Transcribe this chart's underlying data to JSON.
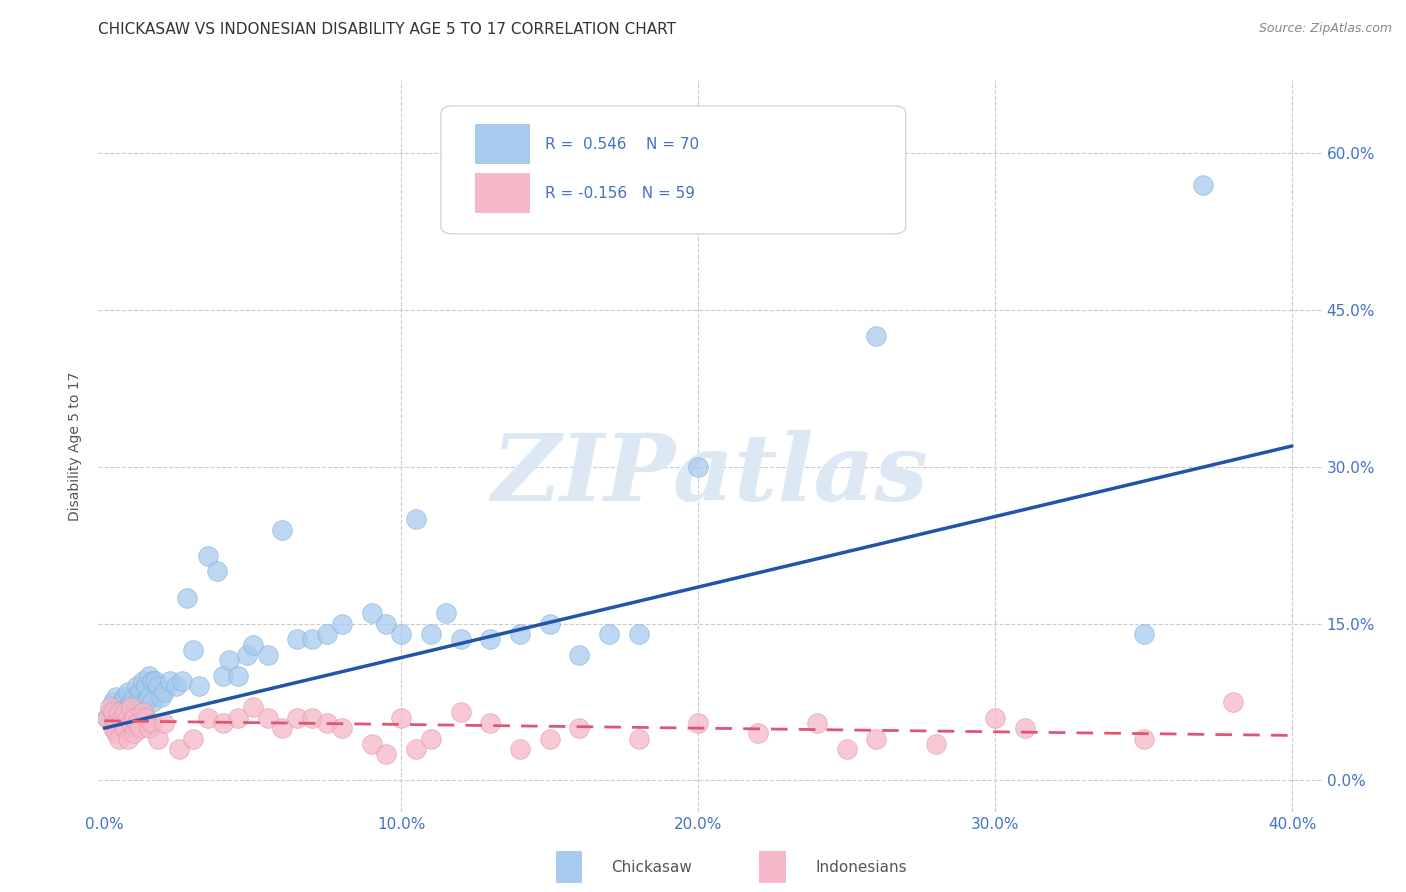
{
  "title": "CHICKASAW VS INDONESIAN DISABILITY AGE 5 TO 17 CORRELATION CHART",
  "source": "Source: ZipAtlas.com",
  "ylabel": "Disability Age 5 to 17",
  "ytick_values": [
    0.0,
    0.15,
    0.3,
    0.45,
    0.6
  ],
  "xtick_values": [
    0.0,
    0.1,
    0.2,
    0.3,
    0.4
  ],
  "xlim": [
    -0.002,
    0.41
  ],
  "ylim": [
    -0.03,
    0.67
  ],
  "chickasaw_R": 0.546,
  "chickasaw_N": 70,
  "indonesian_R": -0.156,
  "indonesian_N": 59,
  "chickasaw_color": "#a8caee",
  "chickasaw_edge_color": "#7aafd4",
  "chickasaw_line_color": "#2255aa",
  "indonesian_color": "#f5b8c8",
  "indonesian_edge_color": "#e090a8",
  "indonesian_line_color": "#e05575",
  "watermark_color": "#dce9f5",
  "background_color": "#ffffff",
  "grid_color": "#cccccc",
  "tick_label_color": "#4472c4",
  "ylabel_color": "#555555",
  "title_color": "#333333",
  "source_color": "#888888",
  "chickasaw_x": [
    0.001,
    0.002,
    0.003,
    0.003,
    0.004,
    0.004,
    0.005,
    0.005,
    0.006,
    0.006,
    0.007,
    0.007,
    0.008,
    0.008,
    0.009,
    0.009,
    0.01,
    0.01,
    0.011,
    0.011,
    0.012,
    0.012,
    0.013,
    0.013,
    0.014,
    0.014,
    0.015,
    0.015,
    0.016,
    0.016,
    0.017,
    0.018,
    0.019,
    0.02,
    0.022,
    0.024,
    0.026,
    0.028,
    0.03,
    0.032,
    0.035,
    0.038,
    0.04,
    0.042,
    0.045,
    0.048,
    0.05,
    0.055,
    0.06,
    0.065,
    0.07,
    0.075,
    0.08,
    0.09,
    0.095,
    0.1,
    0.105,
    0.11,
    0.115,
    0.12,
    0.13,
    0.14,
    0.15,
    0.16,
    0.17,
    0.18,
    0.2,
    0.26,
    0.35,
    0.37
  ],
  "chickasaw_y": [
    0.06,
    0.065,
    0.055,
    0.075,
    0.06,
    0.08,
    0.055,
    0.07,
    0.06,
    0.075,
    0.065,
    0.08,
    0.07,
    0.085,
    0.065,
    0.075,
    0.07,
    0.08,
    0.075,
    0.09,
    0.07,
    0.085,
    0.075,
    0.095,
    0.075,
    0.09,
    0.08,
    0.1,
    0.075,
    0.095,
    0.095,
    0.09,
    0.08,
    0.085,
    0.095,
    0.09,
    0.095,
    0.175,
    0.125,
    0.09,
    0.215,
    0.2,
    0.1,
    0.115,
    0.1,
    0.12,
    0.13,
    0.12,
    0.24,
    0.135,
    0.135,
    0.14,
    0.15,
    0.16,
    0.15,
    0.14,
    0.25,
    0.14,
    0.16,
    0.135,
    0.135,
    0.14,
    0.15,
    0.12,
    0.14,
    0.14,
    0.3,
    0.425,
    0.14,
    0.57
  ],
  "indonesian_x": [
    0.001,
    0.002,
    0.003,
    0.003,
    0.004,
    0.004,
    0.005,
    0.005,
    0.006,
    0.006,
    0.007,
    0.007,
    0.008,
    0.008,
    0.009,
    0.009,
    0.01,
    0.01,
    0.011,
    0.012,
    0.013,
    0.014,
    0.015,
    0.016,
    0.018,
    0.02,
    0.025,
    0.03,
    0.035,
    0.04,
    0.045,
    0.05,
    0.055,
    0.06,
    0.065,
    0.07,
    0.075,
    0.08,
    0.09,
    0.095,
    0.1,
    0.105,
    0.11,
    0.12,
    0.13,
    0.14,
    0.15,
    0.16,
    0.18,
    0.2,
    0.22,
    0.24,
    0.25,
    0.26,
    0.28,
    0.3,
    0.31,
    0.35,
    0.38
  ],
  "indonesian_y": [
    0.06,
    0.07,
    0.05,
    0.065,
    0.055,
    0.045,
    0.04,
    0.065,
    0.06,
    0.055,
    0.05,
    0.065,
    0.06,
    0.04,
    0.055,
    0.07,
    0.06,
    0.045,
    0.055,
    0.05,
    0.065,
    0.06,
    0.05,
    0.055,
    0.04,
    0.055,
    0.03,
    0.04,
    0.06,
    0.055,
    0.06,
    0.07,
    0.06,
    0.05,
    0.06,
    0.06,
    0.055,
    0.05,
    0.035,
    0.025,
    0.06,
    0.03,
    0.04,
    0.065,
    0.055,
    0.03,
    0.04,
    0.05,
    0.04,
    0.055,
    0.045,
    0.055,
    0.03,
    0.04,
    0.035,
    0.06,
    0.05,
    0.04,
    0.075
  ]
}
